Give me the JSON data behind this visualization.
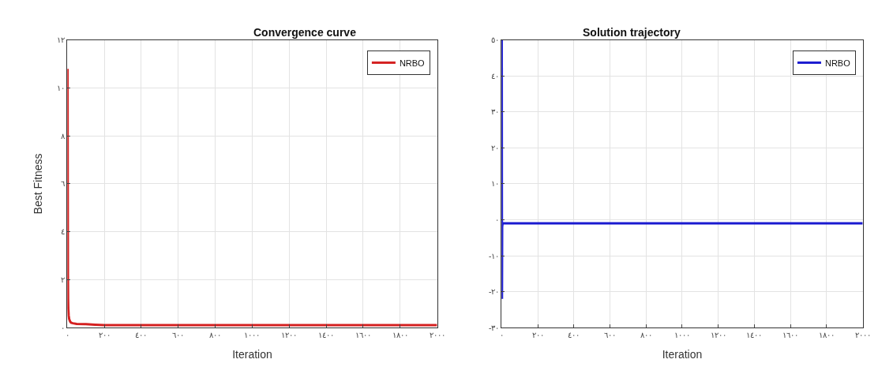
{
  "chart_data": [
    {
      "type": "line",
      "title": "Convergence curve",
      "xlabel": "Iteration",
      "ylabel": "Best Fitness",
      "series": [
        {
          "name": "NRBO",
          "color": "#d42020",
          "x": [
            1,
            2,
            3,
            4,
            5,
            7,
            10,
            15,
            20,
            30,
            50,
            100,
            150,
            200,
            400,
            1000,
            2000
          ],
          "values": [
            10.8,
            6,
            2.2,
            1.2,
            0.8,
            0.5,
            0.35,
            0.25,
            0.2,
            0.18,
            0.15,
            0.14,
            0.12,
            0.1,
            0.1,
            0.1,
            0.1
          ]
        }
      ],
      "xlim": [
        0,
        2000
      ],
      "ylim": [
        0,
        12
      ],
      "xticks": [
        {
          "value": 0,
          "label": "٠"
        },
        {
          "value": 200,
          "label": "٢٠٠"
        },
        {
          "value": 400,
          "label": "٤٠٠"
        },
        {
          "value": 600,
          "label": "٦٠٠"
        },
        {
          "value": 800,
          "label": "٨٠٠"
        },
        {
          "value": 1000,
          "label": "١٠٠٠"
        },
        {
          "value": 1200,
          "label": "١٢٠٠"
        },
        {
          "value": 1400,
          "label": "١٤٠٠"
        },
        {
          "value": 1600,
          "label": "١٦٠٠"
        },
        {
          "value": 1800,
          "label": "١٨٠٠"
        },
        {
          "value": 2000,
          "label": "٢٠٠٠"
        }
      ],
      "yticks": [
        {
          "value": 0,
          "label": "٠"
        },
        {
          "value": 2,
          "label": "٢"
        },
        {
          "value": 4,
          "label": "٤"
        },
        {
          "value": 6,
          "label": "٦"
        },
        {
          "value": 8,
          "label": "٨"
        },
        {
          "value": 10,
          "label": "١٠"
        },
        {
          "value": 12,
          "label": "١٢"
        }
      ],
      "grid": true,
      "legend": "top right",
      "line_style": "solid",
      "marker": "none"
    },
    {
      "type": "line",
      "title": "Solution trajectory",
      "xlabel": "Iteration",
      "series": [
        {
          "name": "NRBO",
          "color": "#1a1ad0",
          "x": [
            1,
            2,
            3,
            5,
            10,
            2000
          ],
          "values": [
            50,
            -22,
            -2,
            -1,
            -1,
            -1
          ]
        }
      ],
      "xlim": [
        0,
        2000
      ],
      "ylim": [
        -30,
        50
      ],
      "xticks": [
        {
          "value": 0,
          "label": "٠"
        },
        {
          "value": 200,
          "label": "٢٠٠"
        },
        {
          "value": 400,
          "label": "٤٠٠"
        },
        {
          "value": 600,
          "label": "٦٠٠"
        },
        {
          "value": 800,
          "label": "٨٠٠"
        },
        {
          "value": 1000,
          "label": "١٠٠٠"
        },
        {
          "value": 1200,
          "label": "١٢٠٠"
        },
        {
          "value": 1400,
          "label": "١٤٠٠"
        },
        {
          "value": 1600,
          "label": "١٦٠٠"
        },
        {
          "value": 1800,
          "label": "١٨٠٠"
        },
        {
          "value": 2000,
          "label": "٢٠٠٠"
        }
      ],
      "yticks": [
        {
          "value": -30,
          "label": "-٣٠"
        },
        {
          "value": -20,
          "label": "-٢٠"
        },
        {
          "value": -10,
          "label": "-١٠"
        },
        {
          "value": 0,
          "label": "٠"
        },
        {
          "value": 10,
          "label": "١٠"
        },
        {
          "value": 20,
          "label": "٢٠"
        },
        {
          "value": 30,
          "label": "٣٠"
        },
        {
          "value": 40,
          "label": "٤٠"
        },
        {
          "value": 50,
          "label": "٥٠"
        }
      ],
      "grid": true,
      "legend": "top right",
      "line_style": "solid",
      "marker": "none"
    }
  ]
}
